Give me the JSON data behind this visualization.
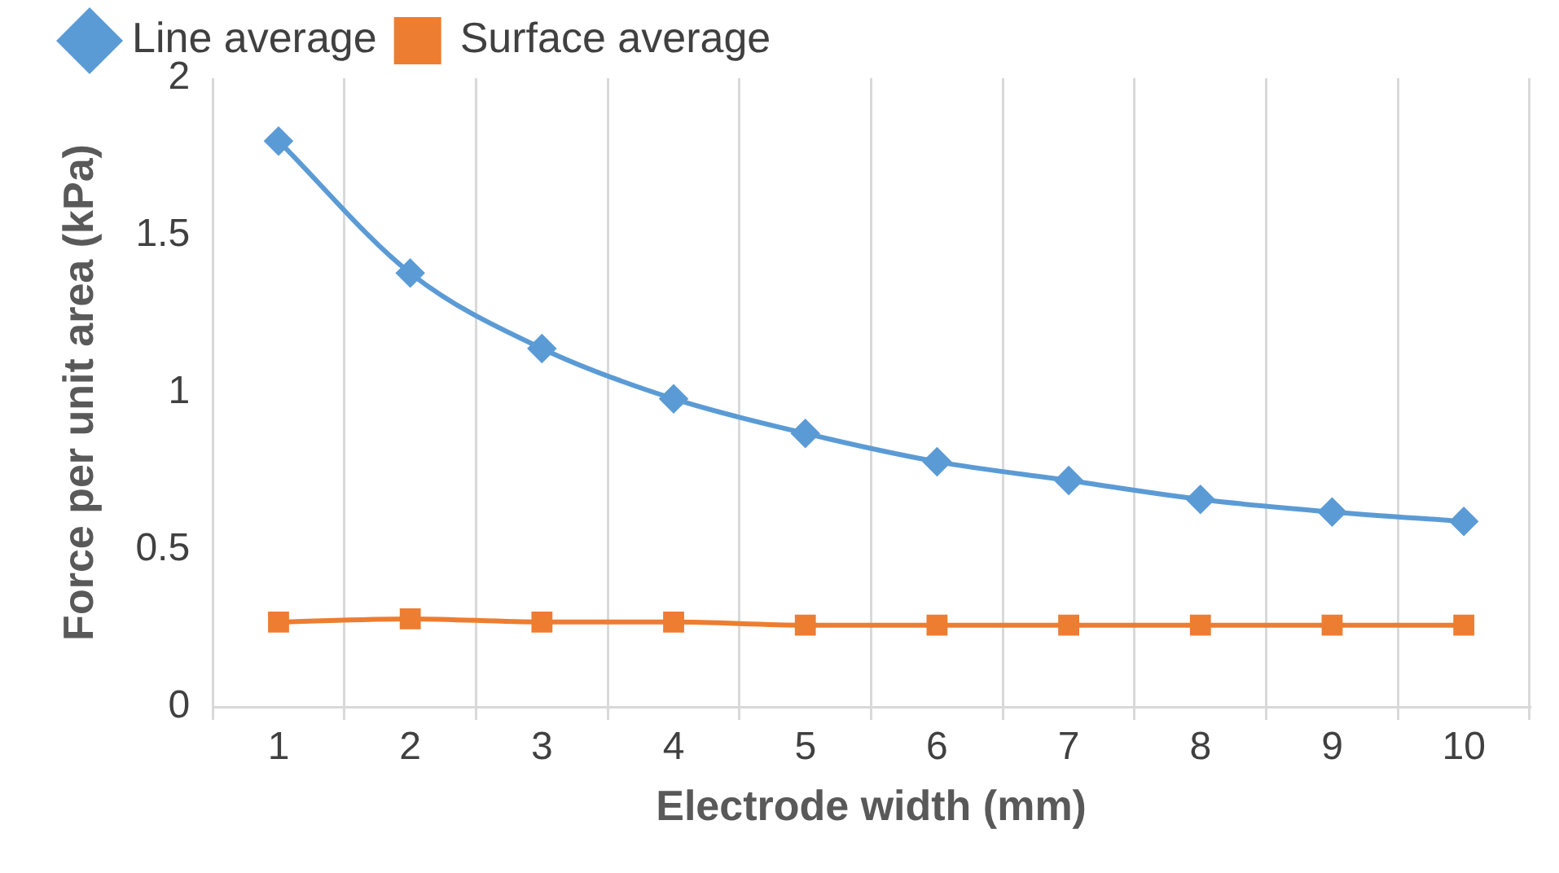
{
  "chart_data": {
    "type": "line",
    "xlabel": "Electrode width (mm)",
    "ylabel": "Force per unit area (kPa)",
    "categories": [
      "1",
      "2",
      "3",
      "4",
      "5",
      "6",
      "7",
      "8",
      "9",
      "10"
    ],
    "series": [
      {
        "name": "Line average",
        "color": "#5b9bd5",
        "marker": "diamond",
        "values": [
          1.8,
          1.38,
          1.14,
          0.98,
          0.87,
          0.78,
          0.72,
          0.66,
          0.62,
          0.59
        ]
      },
      {
        "name": "Surface average",
        "color": "#ed7d31",
        "marker": "square",
        "values": [
          0.27,
          0.28,
          0.27,
          0.27,
          0.26,
          0.26,
          0.26,
          0.26,
          0.26,
          0.26
        ]
      }
    ],
    "ylim": [
      0,
      2
    ],
    "yticks": [
      0,
      0.5,
      1,
      1.5,
      2
    ],
    "grid": "x",
    "legend": "top",
    "line_style": "solid"
  }
}
